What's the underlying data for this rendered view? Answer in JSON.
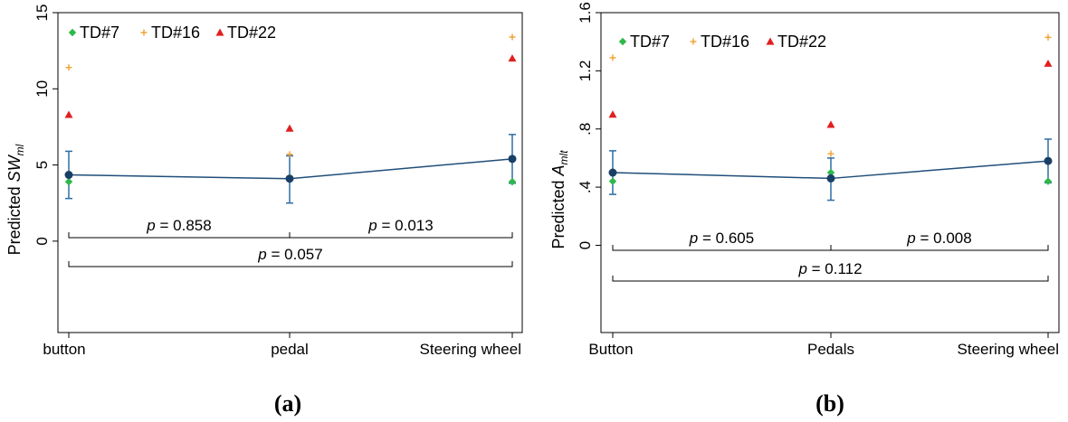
{
  "colors": {
    "mean": "#1a3f66",
    "line": "#2e6da4",
    "td7": "#2eb84a",
    "td16": "#f0a030",
    "td22": "#e02020"
  },
  "chart_data": [
    {
      "type": "scatter",
      "panel_caption": "(a)",
      "ylabel_prefix": "Predicted ",
      "ylabel_var": "SW",
      "ylabel_sub": "ml",
      "categories": [
        "button",
        "pedal",
        "Steering wheel"
      ],
      "ylim": [
        -6,
        15
      ],
      "yticks": [
        0,
        5,
        10,
        15
      ],
      "ytick_labels": [
        "0",
        "5",
        "10",
        "15"
      ],
      "grid": false,
      "legend_position": "top-left",
      "mean": {
        "values": [
          4.35,
          4.1,
          5.4
        ],
        "ci_low": [
          2.8,
          2.5,
          3.8
        ],
        "ci_high": [
          5.9,
          5.6,
          7.0
        ]
      },
      "series": [
        {
          "name": "TD#7",
          "marker": "diamond",
          "values": [
            3.9,
            4.15,
            3.9
          ]
        },
        {
          "name": "TD#16",
          "marker": "plus",
          "values": [
            11.4,
            5.7,
            13.4
          ]
        },
        {
          "name": "TD#22",
          "marker": "triangle",
          "values": [
            8.3,
            7.4,
            12.0
          ]
        }
      ],
      "comparisons": [
        {
          "from": 0,
          "to": 1,
          "level": 0,
          "label": "p = 0.858"
        },
        {
          "from": 1,
          "to": 2,
          "level": 0,
          "label": "p = 0.013"
        },
        {
          "from": 0,
          "to": 2,
          "level": 1,
          "label": "p = 0.057"
        }
      ]
    },
    {
      "type": "scatter",
      "panel_caption": "(b)",
      "ylabel_prefix": "Predicted ",
      "ylabel_var": "A",
      "ylabel_sub": "mlt",
      "categories": [
        "Button",
        "Pedals",
        "Steering wheel"
      ],
      "ylim": [
        -0.6,
        1.6
      ],
      "yticks": [
        0,
        0.4,
        0.8,
        1.2,
        1.6
      ],
      "ytick_labels": [
        "0",
        ".4",
        ".8",
        "1.2",
        "1.6"
      ],
      "grid": false,
      "legend_position": "top-left",
      "mean": {
        "values": [
          0.5,
          0.46,
          0.58
        ],
        "ci_low": [
          0.35,
          0.31,
          0.43
        ],
        "ci_high": [
          0.65,
          0.6,
          0.73
        ]
      },
      "series": [
        {
          "name": "TD#7",
          "marker": "diamond",
          "values": [
            0.44,
            0.5,
            0.44
          ]
        },
        {
          "name": "TD#16",
          "marker": "plus",
          "values": [
            1.29,
            0.63,
            1.43
          ]
        },
        {
          "name": "TD#22",
          "marker": "triangle",
          "values": [
            0.9,
            0.83,
            1.25
          ]
        }
      ],
      "comparisons": [
        {
          "from": 0,
          "to": 1,
          "level": 0,
          "label": "p = 0.605"
        },
        {
          "from": 1,
          "to": 2,
          "level": 0,
          "label": "p = 0.008"
        },
        {
          "from": 0,
          "to": 2,
          "level": 1,
          "label": "p = 0.112"
        }
      ]
    }
  ]
}
